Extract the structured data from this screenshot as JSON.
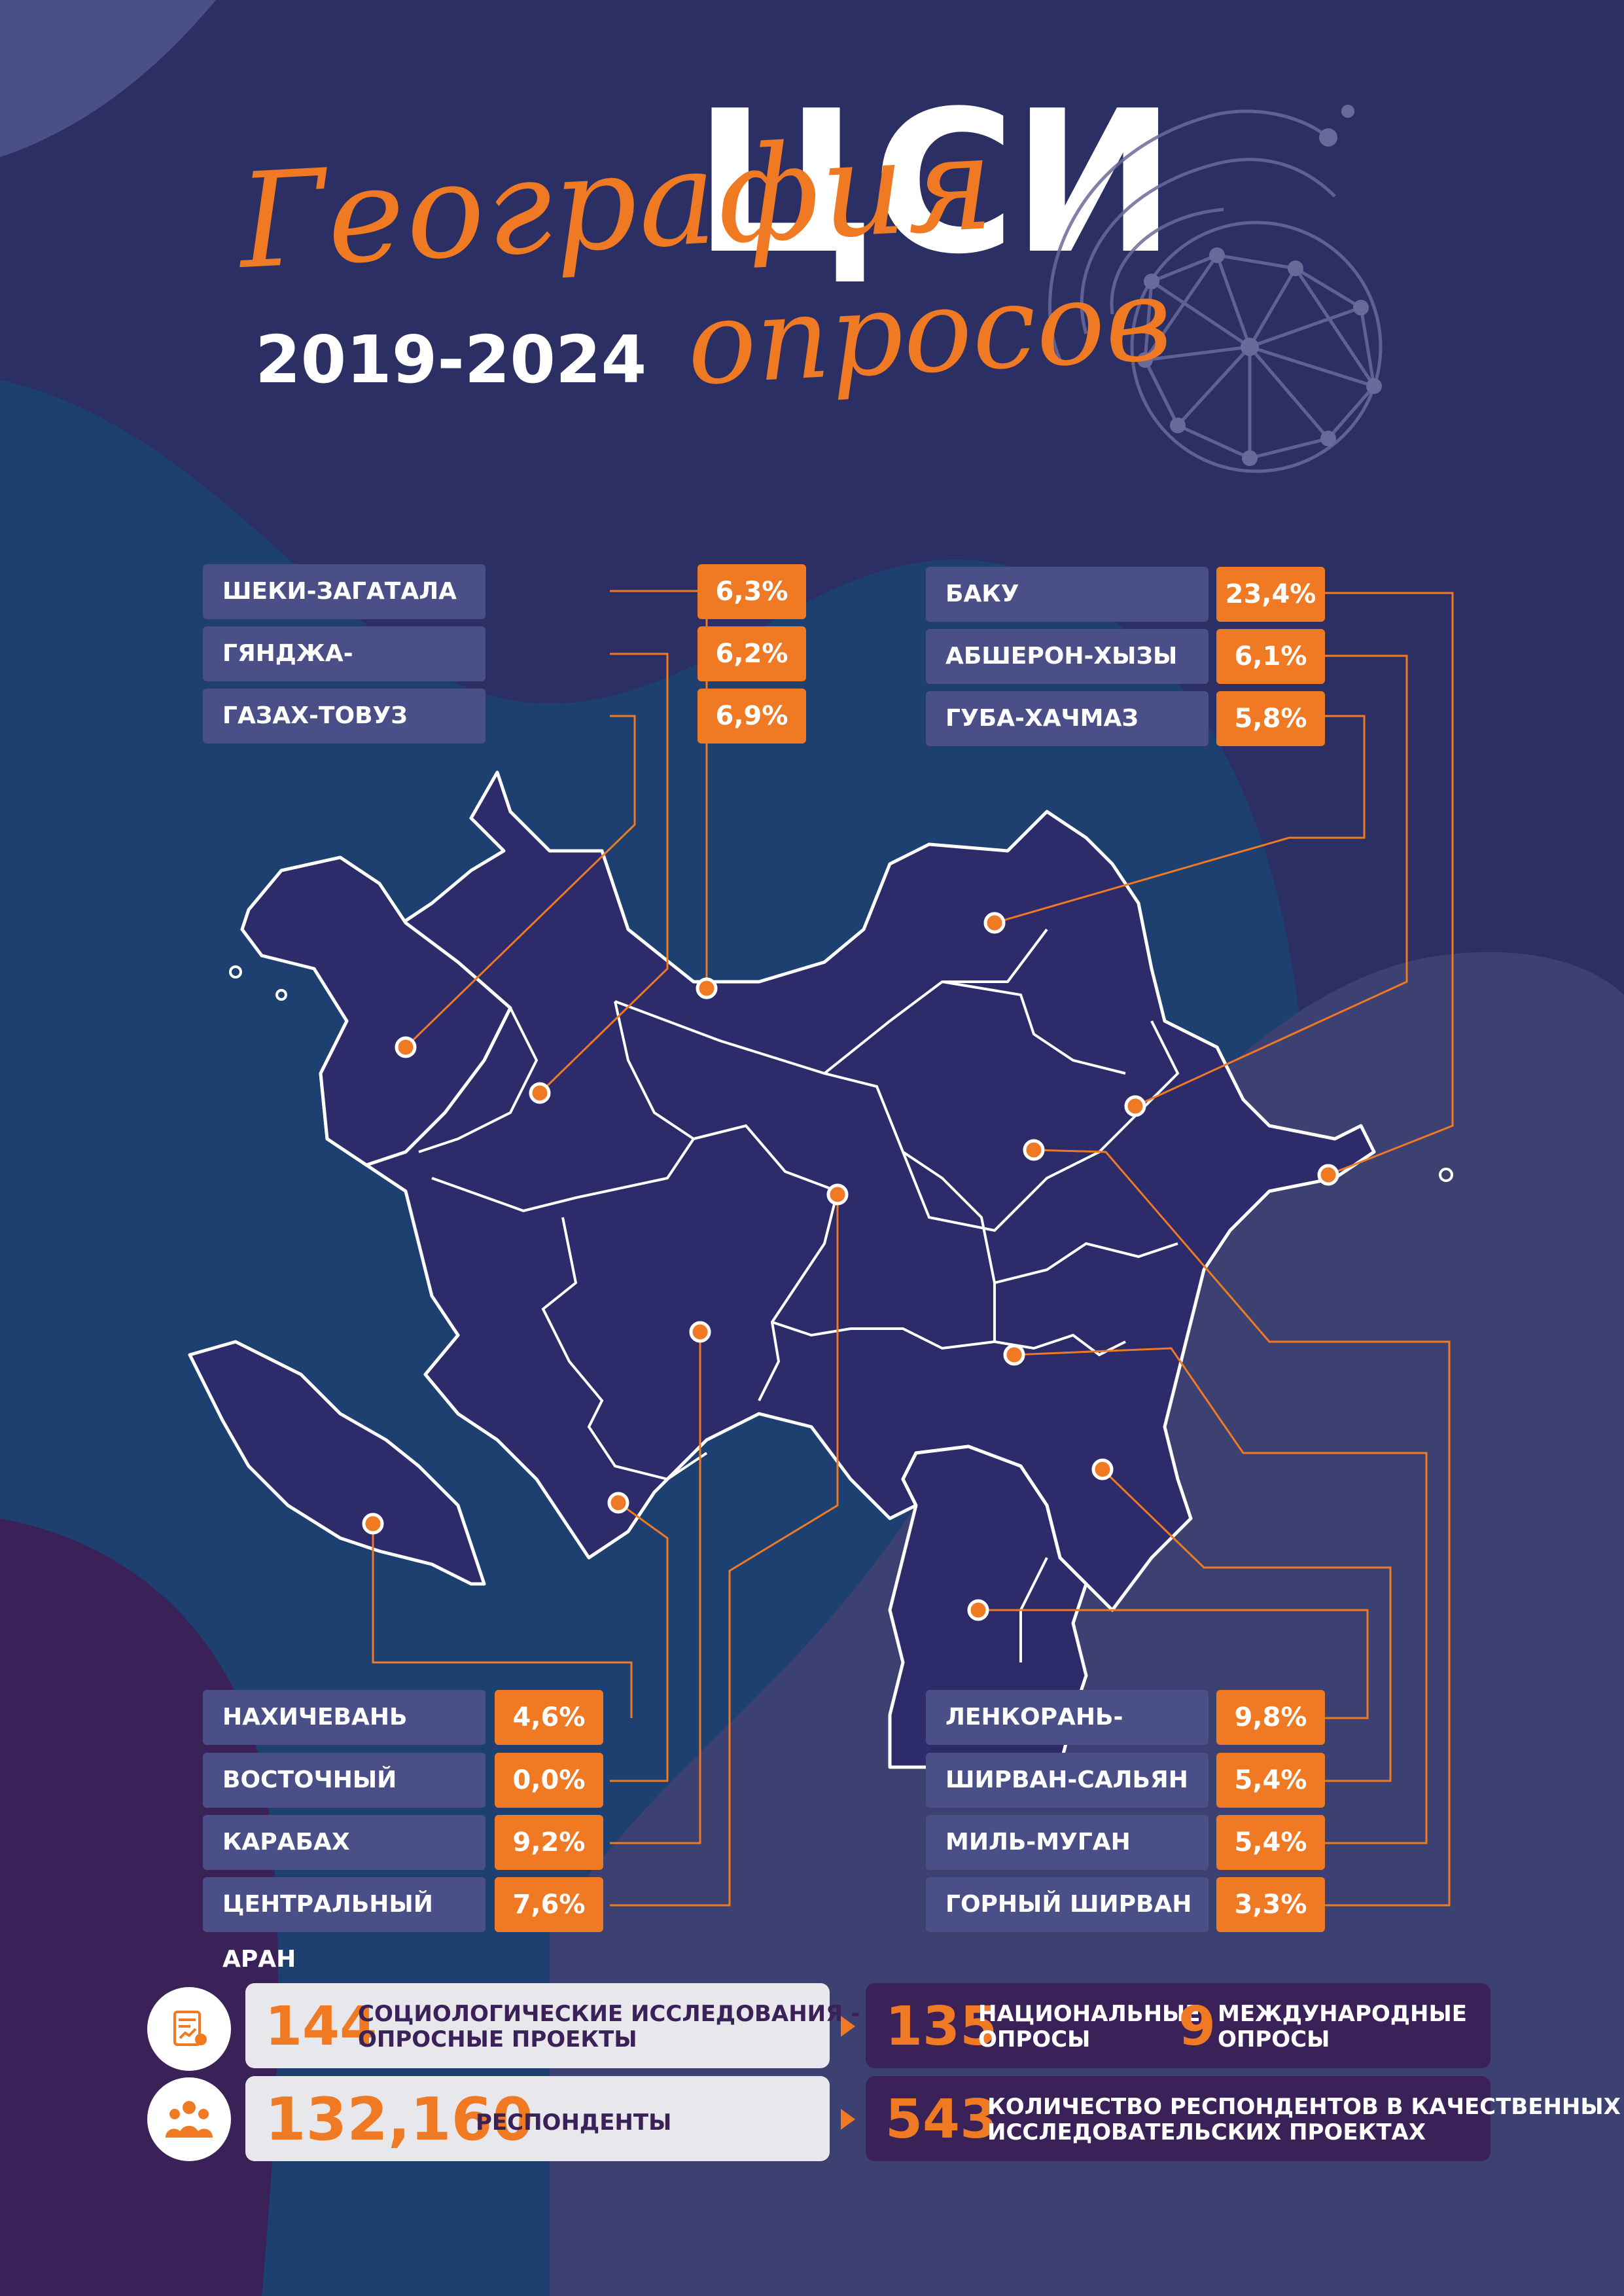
{
  "header": {
    "script_title": "География",
    "script_subtitle": "опросов",
    "logo_text": "ЦСИ",
    "years": "2019-2024"
  },
  "colors": {
    "background": "#2b2f63",
    "accent": "#f07a24",
    "label_box": "#4a5087",
    "stats_dark": "#3a2158",
    "stats_light": "#e8e8ec"
  },
  "regions_left_top": [
    {
      "name": "ШЕКИ-ЗАГАТАЛА",
      "percent": "6,3%"
    },
    {
      "name": "ГЯНДЖА-ДАШКЕСАН",
      "percent": "6,2%"
    },
    {
      "name": "ГАЗАХ-ТОВУЗ",
      "percent": "6,9%"
    }
  ],
  "regions_right_top": [
    {
      "name": "БАКУ",
      "percent": "23,4%"
    },
    {
      "name": "АБШЕРОН-ХЫЗЫ",
      "percent": "6,1%"
    },
    {
      "name": "ГУБА-ХАЧМАЗ",
      "percent": "5,8%"
    }
  ],
  "regions_left_bottom": [
    {
      "name": "НАХИЧЕВАНЬ",
      "percent": "4,6%"
    },
    {
      "name": "ВОСТОЧНЫЙ ЗАНГЕЗУР",
      "percent": "0,0%"
    },
    {
      "name": "КАРАБАХ",
      "percent": "9,2%"
    },
    {
      "name": "ЦЕНТРАЛЬНЫЙ АРАН",
      "percent": "7,6%"
    }
  ],
  "regions_right_bottom": [
    {
      "name": "ЛЕНКОРАНЬ-АСТАРА",
      "percent": "9,8%"
    },
    {
      "name": "ШИРВАН-САЛЬЯН",
      "percent": "5,4%"
    },
    {
      "name": "МИЛЬ-МУГАН",
      "percent": "5,4%"
    },
    {
      "name": "ГОРНЫЙ ШИРВАН",
      "percent": "3,3%"
    }
  ],
  "stats": {
    "projects_number": "144",
    "projects_label": "СОЦИОЛОГИЧЕСКИЕ ИССЛЕДОВАНИЯ -\nОПРОСНЫЕ ПРОЕКТЫ",
    "national_number": "135",
    "national_label": "НАЦИОНАЛЬНЫЕ\nОПРОСЫ",
    "international_number": "9",
    "international_label": "МЕЖДУНАРОДНЫЕ\nОПРОСЫ",
    "respondents_number": "132,160",
    "respondents_label": "РЕСПОНДЕНТЫ",
    "qualitative_number": "543",
    "qualitative_label": "КОЛИЧЕСТВО РЕСПОНДЕНТОВ В КАЧЕСТВЕННЫХ\nИССЛЕДОВАТЕЛЬСКИХ ПРОЕКТАХ",
    "icon_projects": "document-chart-icon",
    "icon_respondents": "people-group-icon"
  }
}
